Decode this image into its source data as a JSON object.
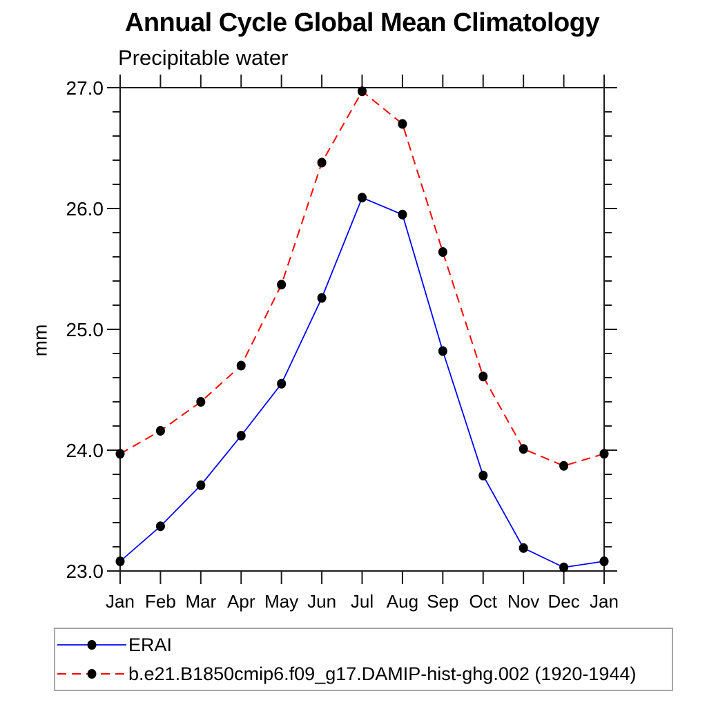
{
  "chart_data": {
    "type": "line",
    "title": "Annual Cycle Global Mean Climatology",
    "subtitle": "Precipitable water",
    "ylabel": "mm",
    "categories": [
      "Jan",
      "Feb",
      "Mar",
      "Apr",
      "May",
      "Jun",
      "Jul",
      "Aug",
      "Sep",
      "Oct",
      "Nov",
      "Dec",
      "Jan"
    ],
    "ylim": [
      23.0,
      27.0
    ],
    "ytick_labels": [
      "23.0",
      "24.0",
      "25.0",
      "26.0",
      "27.0"
    ],
    "ytick_values": [
      23.0,
      24.0,
      25.0,
      26.0,
      27.0
    ],
    "y_minor_step": 0.2,
    "grid": false,
    "legend_position": "bottom",
    "series": [
      {
        "name": "ERAI",
        "color": "#0000ff",
        "line_style": "solid",
        "marker": "circle",
        "marker_color": "#000000",
        "values": [
          23.08,
          23.37,
          23.71,
          24.12,
          24.55,
          25.26,
          26.09,
          25.95,
          24.82,
          23.79,
          23.19,
          23.03,
          23.08
        ]
      },
      {
        "name": "b.e21.B1850cmip6.f09_g17.DAMIP-hist-ghg.002 (1920-1944)",
        "color": "#ff0000",
        "line_style": "dashed",
        "marker": "circle",
        "marker_color": "#000000",
        "values": [
          23.97,
          24.16,
          24.4,
          24.7,
          25.37,
          26.38,
          26.97,
          26.7,
          25.64,
          24.61,
          24.01,
          23.87,
          23.97
        ]
      }
    ]
  },
  "legend": {
    "entries": [
      {
        "label": "ERAI"
      },
      {
        "label": "b.e21.B1850cmip6.f09_g17.DAMIP-hist-ghg.002 (1920-1944)"
      }
    ]
  },
  "colors": {
    "axis": "#1a1a1a",
    "text": "#000000",
    "legend_border": "#a6a6a6",
    "series1": "#0000ff",
    "series2": "#ff0000",
    "marker": "#000000"
  }
}
